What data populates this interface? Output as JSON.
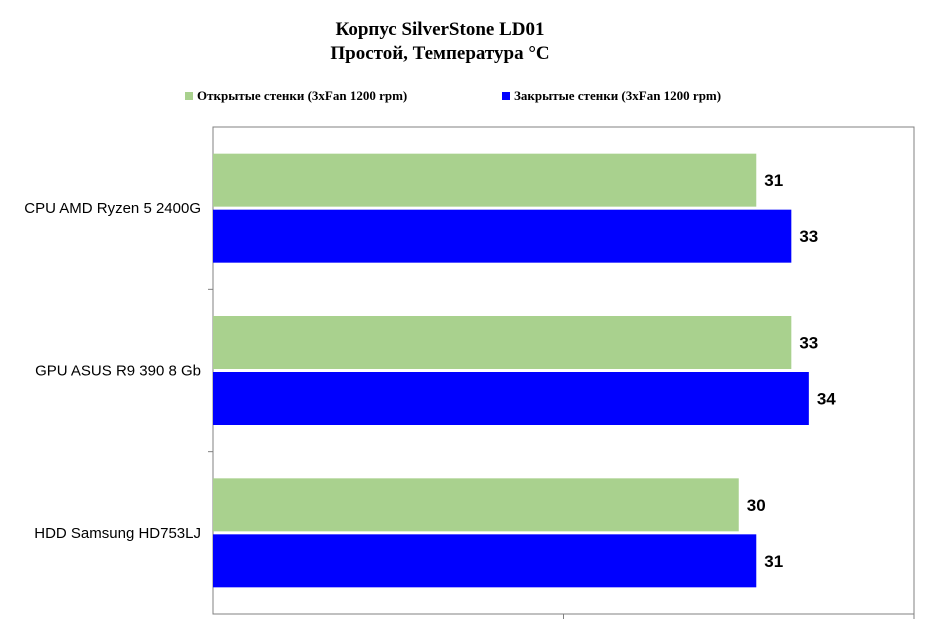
{
  "chart_data": {
    "type": "bar",
    "orientation": "horizontal",
    "title": "Корпус SilverStone LD01",
    "subtitle": "Простой, Температура  °C",
    "categories": [
      "CPU AMD Ryzen 5 2400G",
      "GPU ASUS R9 390 8 Gb",
      "HDD Samsung HD753LJ"
    ],
    "series": [
      {
        "name": "Открытые стенки (3xFan 1200 rpm)",
        "color": "#a9d18e",
        "values": [
          31,
          33,
          30
        ]
      },
      {
        "name": "Закрытые стенки (3xFan 1200 rpm)",
        "color": "#0000ff",
        "values": [
          33,
          34,
          31
        ]
      }
    ],
    "xlim": [
      0,
      40
    ],
    "grid": true,
    "legend_position": "top"
  }
}
